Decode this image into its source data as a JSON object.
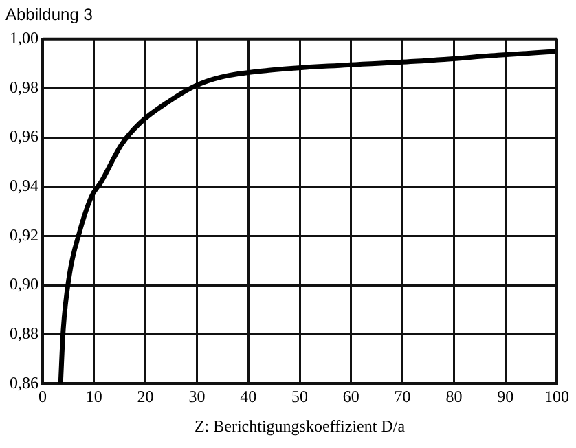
{
  "chart_data": {
    "type": "line",
    "title": "Abbildung 3",
    "xlabel": "Z: Berichtigungskoeffizient D/a",
    "series": [
      {
        "color": "#000000",
        "x": [
          3.5,
          4.0,
          5.2,
          7.1,
          9.5,
          11.4,
          15.3,
          19,
          24.8,
          29.7,
          34.6,
          44,
          59.4,
          72.9,
          89.2,
          100
        ],
        "values": [
          0.86,
          0.8815,
          0.904,
          0.921,
          0.936,
          0.942,
          0.957,
          0.966,
          0.975,
          0.981,
          0.9845,
          0.9873,
          0.9895,
          0.991,
          0.9935,
          0.995
        ]
      }
    ],
    "xlim": [
      0,
      100
    ],
    "xticks": [
      0,
      10,
      20,
      30,
      40,
      50,
      60,
      70,
      80,
      90,
      100
    ],
    "ylim": [
      0.86,
      1.0
    ],
    "yticks": [
      {
        "value": 0.86,
        "label": "0,86"
      },
      {
        "value": 0.88,
        "label": "0,88"
      },
      {
        "value": 0.9,
        "label": "0,90"
      },
      {
        "value": 0.92,
        "label": "0,92"
      },
      {
        "value": 0.94,
        "label": "0,94"
      },
      {
        "value": 0.96,
        "label": "0,96"
      },
      {
        "value": 0.98,
        "label": "0,98"
      },
      {
        "value": 1.0,
        "label": "1,00"
      }
    ],
    "grid": true,
    "legend": false,
    "marker": "none",
    "line_style": "solid"
  }
}
